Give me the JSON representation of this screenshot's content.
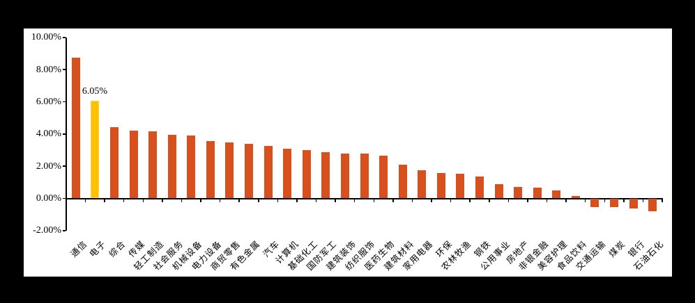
{
  "chart_data": {
    "type": "bar",
    "title": "",
    "xlabel": "",
    "ylabel": "",
    "unit": "%",
    "grid": false,
    "legend": "none",
    "categories": [
      "通信",
      "电子",
      "综合",
      "传媒",
      "轻工制造",
      "社会服务",
      "机械设备",
      "电力设备",
      "商贸零售",
      "有色金属",
      "汽车",
      "计算机",
      "基础化工",
      "国防军工",
      "建筑装饰",
      "纺织服饰",
      "医药生物",
      "建筑材料",
      "家用电器",
      "环保",
      "农林牧渔",
      "钢铁",
      "公用事业",
      "房地产",
      "非银金融",
      "美容护理",
      "食品饮料",
      "交通运输",
      "煤炭",
      "银行",
      "石油石化"
    ],
    "values": [
      8.75,
      6.05,
      4.42,
      4.23,
      4.18,
      3.93,
      3.9,
      3.57,
      3.46,
      3.39,
      3.27,
      3.08,
      2.98,
      2.87,
      2.79,
      2.77,
      2.65,
      2.09,
      1.76,
      1.57,
      1.54,
      1.36,
      0.88,
      0.71,
      0.67,
      0.49,
      0.15,
      -0.52,
      -0.54,
      -0.63,
      -0.8
    ],
    "highlight": {
      "index": 1,
      "category": "电子",
      "label": "6.05%",
      "color": "#FFC000",
      "edge_color": "#FFD34D"
    },
    "bar_color": "#D8501E",
    "axis_color": "#000000",
    "panel_background": "#FFFFFF",
    "page_background": "#000000",
    "y_axis": {
      "min": -2,
      "max": 10,
      "step": 2,
      "tick_values": [
        10,
        8,
        6,
        4,
        2,
        0,
        -2
      ],
      "tick_labels": [
        "10.00%",
        "8.00%",
        "6.00%",
        "4.00%",
        "2.00%",
        "0.00%",
        "-2.00%"
      ]
    },
    "x_axis": {
      "label_rotation_deg": 45
    }
  }
}
